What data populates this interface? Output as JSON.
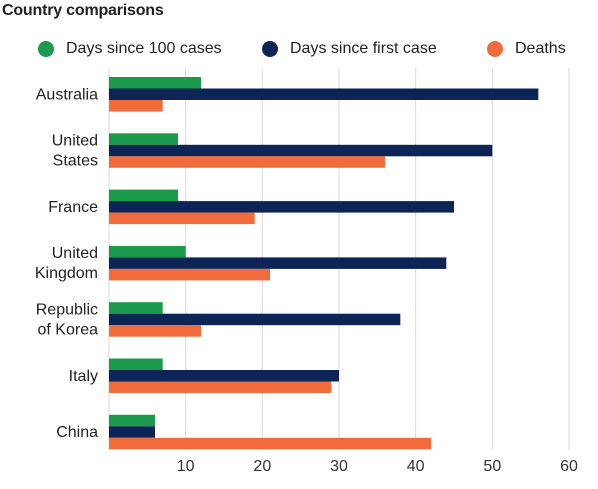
{
  "chart_data": {
    "type": "bar",
    "orientation": "horizontal",
    "title": "Country comparisons",
    "categories": [
      "Australia",
      "United\nStates",
      "France",
      "United\nKingdom",
      "Republic\nof Korea",
      "Italy",
      "China"
    ],
    "series": [
      {
        "name": "Days since 100 cases",
        "color": "#1a9a4a",
        "values": [
          12,
          9,
          9,
          10,
          7,
          7,
          6
        ]
      },
      {
        "name": "Days since first case",
        "color": "#0d2457",
        "values": [
          56,
          50,
          45,
          44,
          38,
          30,
          6
        ]
      },
      {
        "name": "Deaths",
        "color": "#f26b3a",
        "values": [
          7,
          36,
          19,
          21,
          12,
          29,
          42
        ]
      }
    ],
    "xlim": [
      0,
      60
    ],
    "xticks": [
      10,
      20,
      30,
      40,
      50,
      60
    ],
    "grid": true,
    "legend": "top"
  }
}
